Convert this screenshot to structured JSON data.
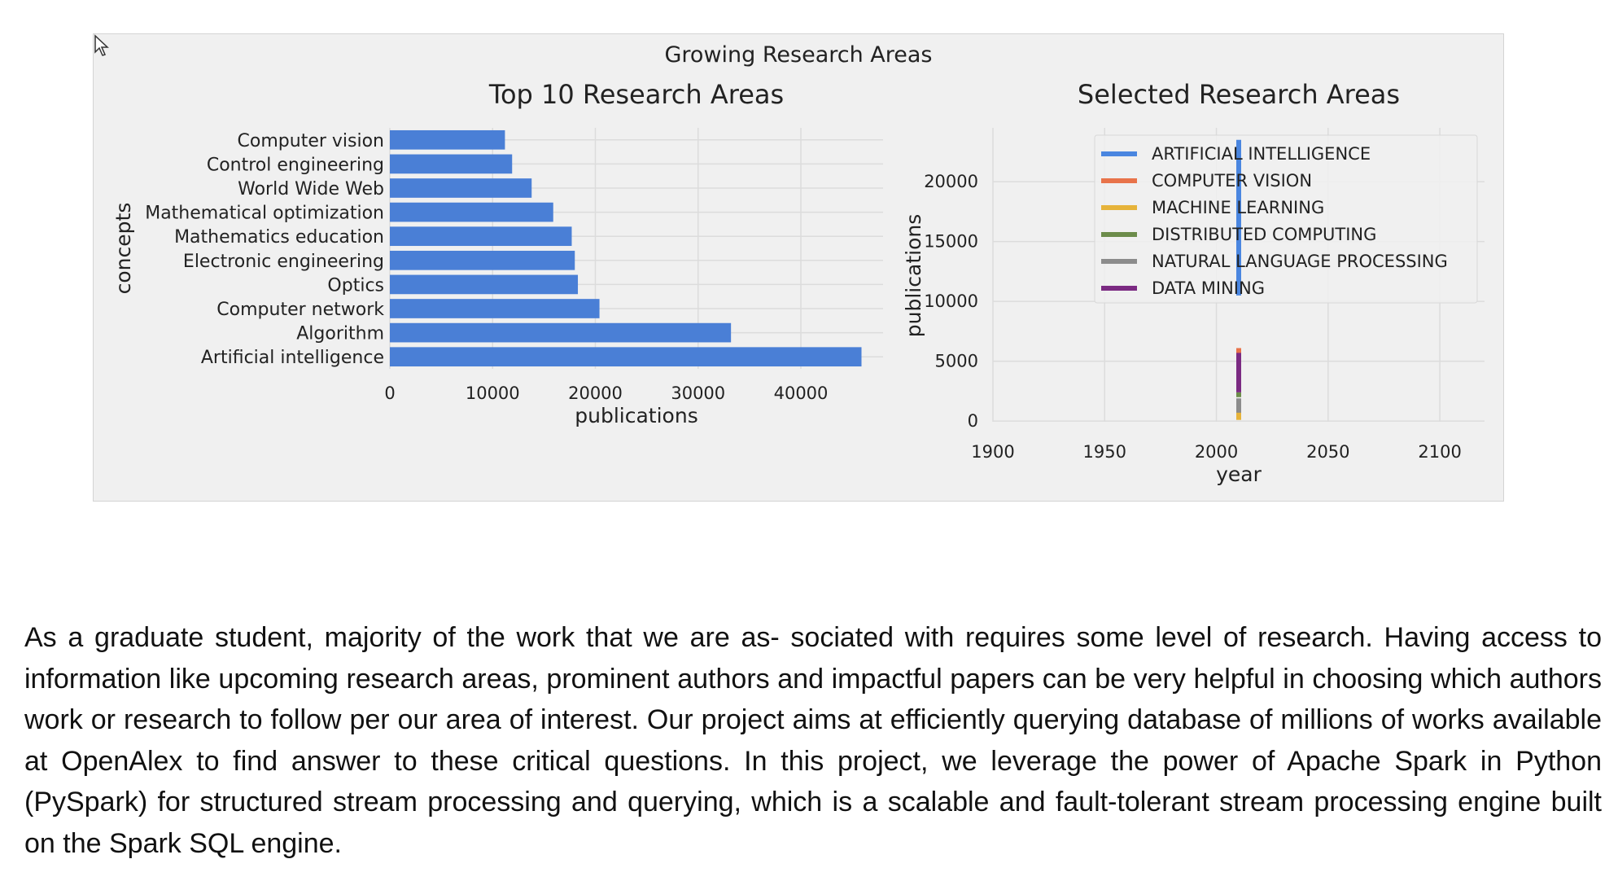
{
  "figure": {
    "title": "Growing Research Areas"
  },
  "chart_data": [
    {
      "type": "bar",
      "orientation": "horizontal",
      "title": "Top 10 Research Areas",
      "xlabel": "publications",
      "ylabel": "concepts",
      "categories": [
        "Computer vision",
        "Control engineering",
        "World Wide Web",
        "Mathematical optimization",
        "Mathematics education",
        "Electronic engineering",
        "Optics",
        "Computer network",
        "Algorithm",
        "Artificial intelligence"
      ],
      "values": [
        11200,
        11900,
        13800,
        15900,
        17700,
        18000,
        18300,
        20400,
        33200,
        45900
      ],
      "xlim": [
        0,
        48000
      ],
      "xticks": [
        0,
        10000,
        20000,
        30000,
        40000
      ],
      "grid": true,
      "color": "#4a7fd6"
    },
    {
      "type": "line",
      "title": "Selected Research Areas",
      "xlabel": "year",
      "ylabel": "publications",
      "xlim": [
        1900,
        2120
      ],
      "ylim": [
        -600,
        24500
      ],
      "xticks": [
        1900,
        1950,
        2000,
        2050,
        2100
      ],
      "yticks": [
        0,
        5000,
        10000,
        15000,
        20000
      ],
      "grid": true,
      "legend_position": "top-right",
      "series": [
        {
          "name": "ARTIFICIAL INTELLIGENCE",
          "color": "#4a86e0",
          "x": [
            2010,
            2010
          ],
          "y": [
            10500,
            23500
          ]
        },
        {
          "name": "COMPUTER VISION",
          "color": "#e8734a",
          "x": [
            2010,
            2010
          ],
          "y": [
            5600,
            6100
          ]
        },
        {
          "name": "MACHINE LEARNING",
          "color": "#e6b33a",
          "x": [
            2010,
            2010
          ],
          "y": [
            100,
            800
          ]
        },
        {
          "name": "DISTRIBUTED COMPUTING",
          "color": "#6c8c4a",
          "x": [
            2010,
            2010
          ],
          "y": [
            2000,
            2400
          ]
        },
        {
          "name": "NATURAL LANGUAGE PROCESSING",
          "color": "#8c8c8c",
          "x": [
            2010,
            2010
          ],
          "y": [
            700,
            1900
          ]
        },
        {
          "name": "DATA MINING",
          "color": "#7b2a82",
          "x": [
            2010,
            2010
          ],
          "y": [
            2400,
            5700
          ]
        }
      ]
    }
  ],
  "body_text": "As a graduate student, majority of the work that we are as- sociated with requires some level of research. Having access to information like upcoming research areas, prominent authors and impactful papers can be very helpful in choosing which authors work or research to follow per our area of interest. Our project aims at efficiently querying database of millions of works available at OpenAlex to find answer to these critical questions. In this project, we leverage the power of Apache Spark in Python (PySpark) for structured stream processing and querying, which is a scalable and fault-tolerant stream processing engine built on the Spark SQL engine."
}
